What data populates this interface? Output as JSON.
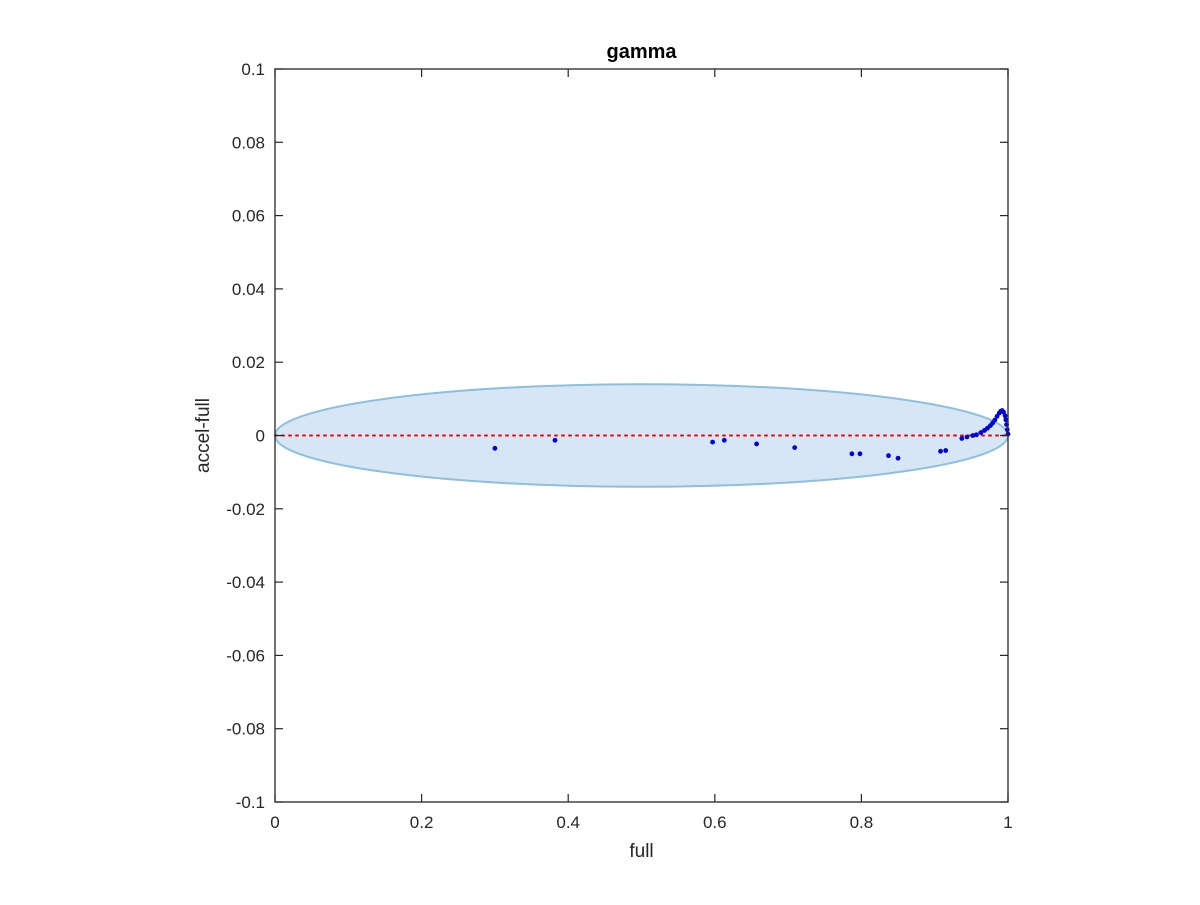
{
  "chart_data": {
    "type": "scatter",
    "title": "gamma",
    "xlabel": "full",
    "ylabel": "accel-full",
    "xlim": [
      0,
      1
    ],
    "ylim": [
      -0.1,
      0.1
    ],
    "x_ticks": [
      0,
      0.2,
      0.4,
      0.6,
      0.8,
      1
    ],
    "x_tick_labels": [
      "0",
      "0.2",
      "0.4",
      "0.6",
      "0.8",
      "1"
    ],
    "y_ticks": [
      -0.1,
      -0.08,
      -0.06,
      -0.04,
      -0.02,
      0,
      0.02,
      0.04,
      0.06,
      0.08,
      0.1
    ],
    "y_tick_labels": [
      "-0.1",
      "-0.08",
      "-0.06",
      "-0.04",
      "-0.02",
      "0",
      "0.02",
      "0.04",
      "0.06",
      "0.08",
      "0.1"
    ],
    "grid": false,
    "reference_line": {
      "y": 0,
      "style": "dotted",
      "color": "#ff0000"
    },
    "ellipse": {
      "center": [
        0.5,
        0
      ],
      "semi_axes": [
        0.5,
        0.014
      ],
      "fill": "#d6e6f4",
      "stroke": "#8cbfe0"
    },
    "point_color": "#0000dd",
    "points": [
      [
        0.3,
        -0.0035
      ],
      [
        0.382,
        -0.0013
      ],
      [
        0.597,
        -0.0018
      ],
      [
        0.613,
        -0.0013
      ],
      [
        0.657,
        -0.0023
      ],
      [
        0.709,
        -0.0033
      ],
      [
        0.787,
        -0.005
      ],
      [
        0.798,
        -0.005
      ],
      [
        0.837,
        -0.0055
      ],
      [
        0.85,
        -0.0062
      ],
      [
        0.908,
        -0.0043
      ],
      [
        0.915,
        -0.0041
      ],
      [
        0.937,
        -0.0008
      ],
      [
        0.944,
        -0.0004
      ],
      [
        0.952,
        0.0
      ],
      [
        0.957,
        0.0002
      ],
      [
        0.963,
        0.0008
      ],
      [
        0.968,
        0.0014
      ],
      [
        0.972,
        0.002
      ],
      [
        0.976,
        0.0027
      ],
      [
        0.979,
        0.0034
      ],
      [
        0.982,
        0.0042
      ],
      [
        0.985,
        0.0052
      ],
      [
        0.988,
        0.0061
      ],
      [
        0.99,
        0.0066
      ],
      [
        0.992,
        0.0068
      ],
      [
        0.994,
        0.0064
      ],
      [
        0.996,
        0.0054
      ],
      [
        0.997,
        0.0043
      ],
      [
        0.998,
        0.003
      ],
      [
        0.999,
        0.0016
      ],
      [
        1.0,
        0.0004
      ]
    ]
  }
}
